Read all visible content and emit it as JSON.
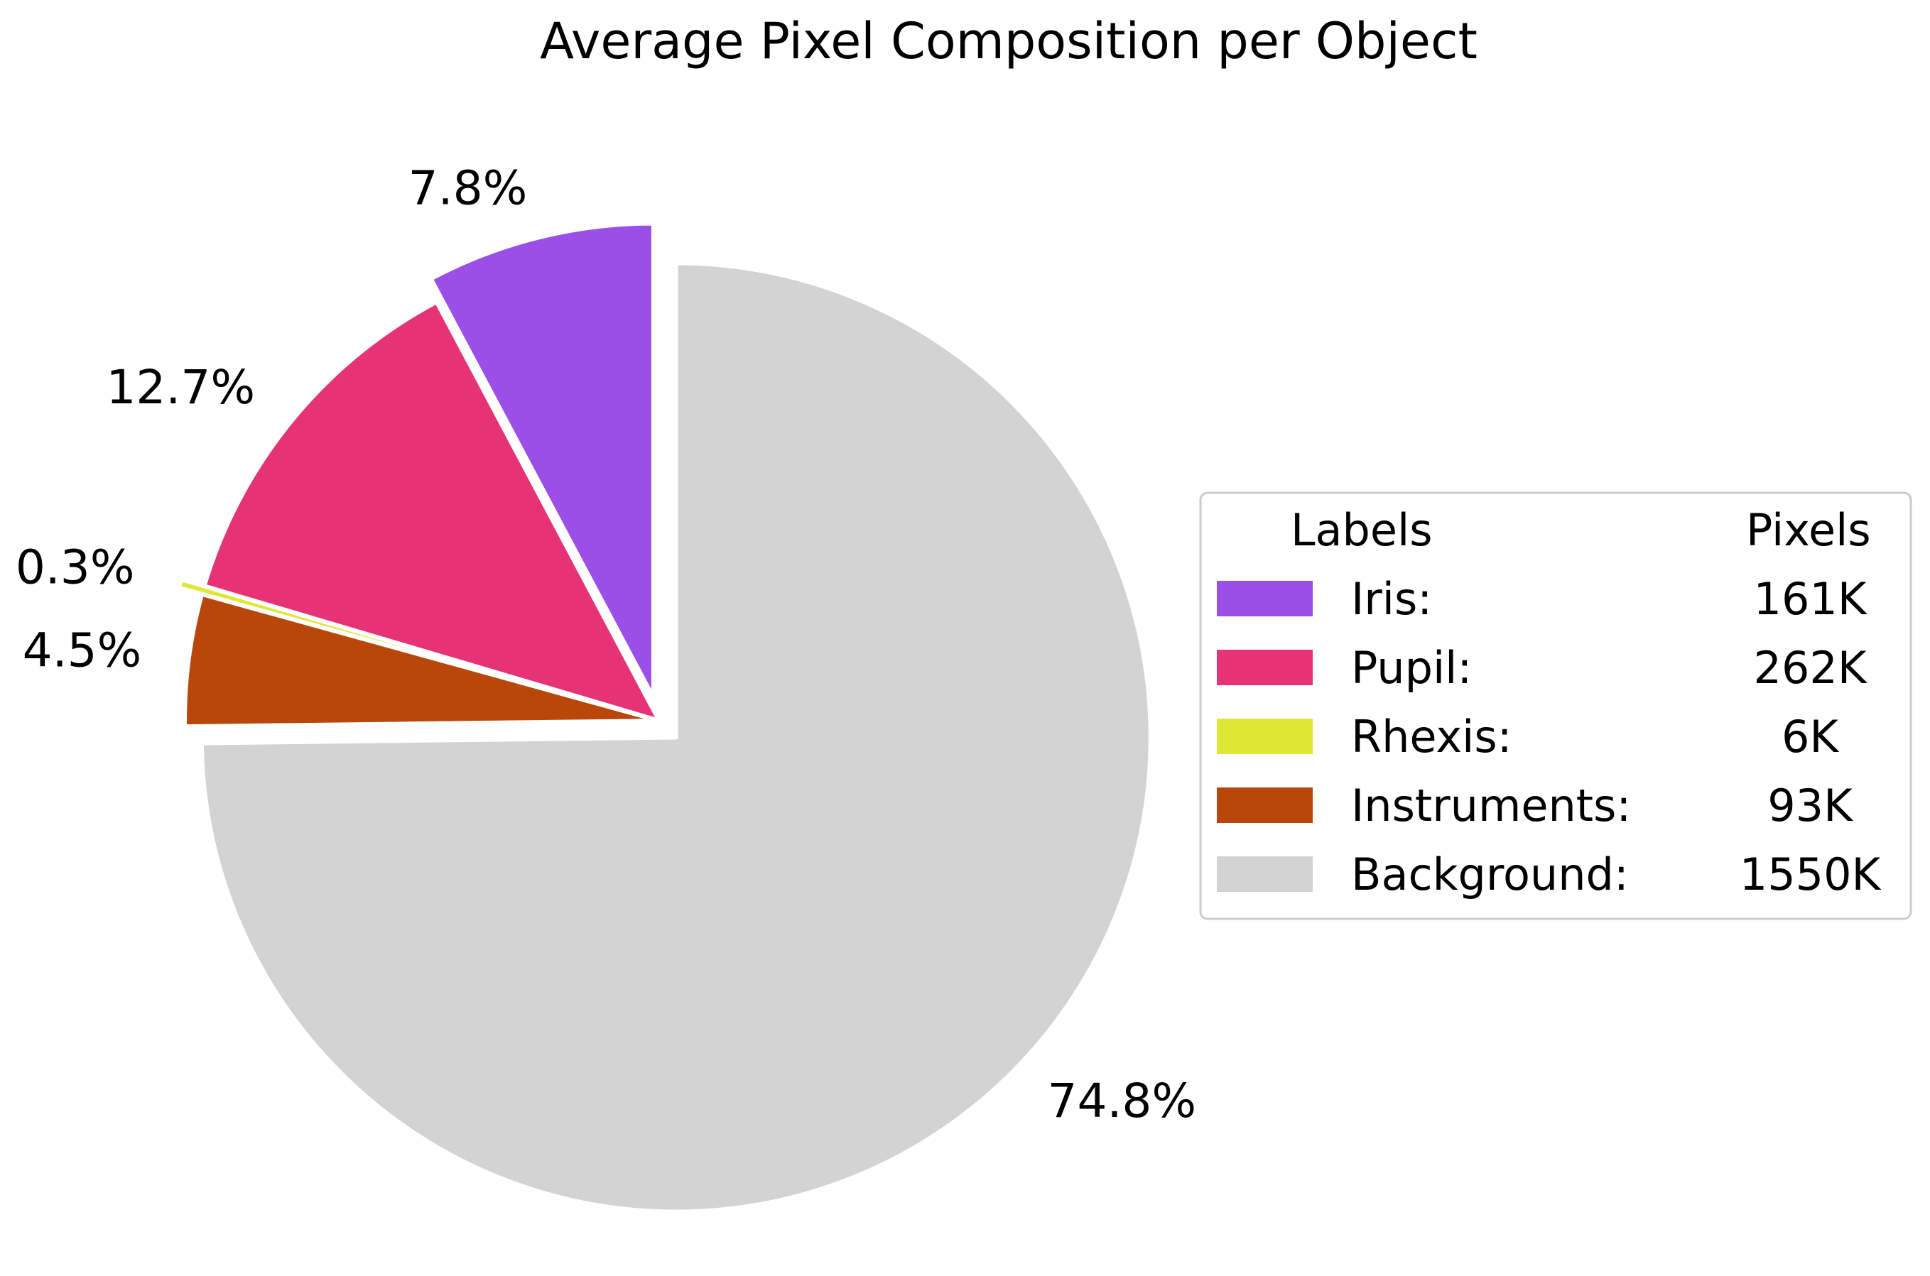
{
  "chart_data": {
    "type": "pie",
    "title": "Average Pixel Composition per Object",
    "start_angle_deg": 90,
    "direction": "counterclockwise",
    "slices": [
      {
        "label": "Iris:",
        "pixels": "161K",
        "value": 161,
        "percent_label": "7.8%",
        "color": "#9b4fe8",
        "explode": 0.05
      },
      {
        "label": "Pupil:",
        "pixels": "262K",
        "value": 262,
        "percent_label": "12.7%",
        "color": "#e63378",
        "explode": 0.0
      },
      {
        "label": "Rhexis:",
        "pixels": "6K",
        "value": 6,
        "percent_label": "0.3%",
        "color": "#dde834",
        "explode": 0.05
      },
      {
        "label": "Instruments:",
        "pixels": "93K",
        "value": 93,
        "percent_label": "4.5%",
        "color": "#b9470a",
        "explode": 0.0
      },
      {
        "label": "Background:",
        "pixels": "1550K",
        "value": 1550,
        "percent_label": "74.8%",
        "color": "#d3d3d3",
        "explode": 0.05
      }
    ],
    "legend": {
      "placement": "right",
      "header_label": "Labels",
      "header_value": "Pixels"
    }
  }
}
